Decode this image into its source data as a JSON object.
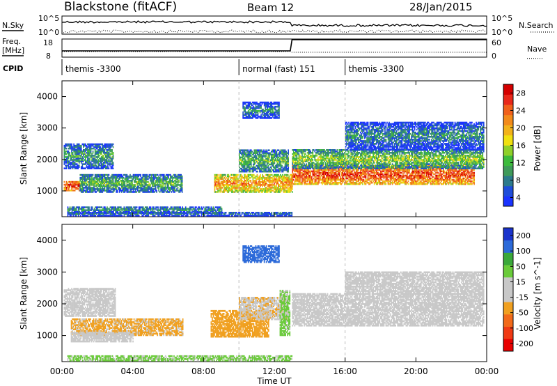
{
  "header": {
    "station": "Blackstone (fitACF)",
    "beam": "Beam 12",
    "date": "28/Jan/2015"
  },
  "top_panel": {
    "nsky_label": "N.Sky",
    "nsearch_label": "N.Search",
    "freq_label_1": "Freq.",
    "freq_label_2": "[MHz]",
    "nave_label": "Nave",
    "cpid_label": "CPID",
    "noise_left_ticks": [
      "10^5",
      "10^0"
    ],
    "noise_right_ticks": [
      "10^5",
      "10^0"
    ],
    "freq_ticks": [
      "18",
      "8"
    ],
    "nave_ticks": [
      "60",
      "0"
    ]
  },
  "cpid_segments": [
    {
      "label": "themis -3300",
      "start_hour": 0,
      "end_hour": 10
    },
    {
      "label": "normal (fast) 151",
      "start_hour": 10,
      "end_hour": 16
    },
    {
      "label": "themis -3300",
      "start_hour": 16,
      "end_hour": 24
    }
  ],
  "chart_data": [
    {
      "type": "heatmap",
      "title": "",
      "xlabel": "Time UT",
      "ylabel": "Slant Range [km]",
      "x_ticks": [
        "00:00",
        "04:00",
        "08:00",
        "12:00",
        "16:00",
        "20:00",
        "00:00"
      ],
      "xlim_hours": [
        0,
        24
      ],
      "y_ticks": [
        1000,
        2000,
        3000,
        4000
      ],
      "ylim": [
        180,
        4500
      ],
      "colorbar": {
        "label": "Power [dB]",
        "ticks": [
          "28",
          "24",
          "20",
          "16",
          "12",
          "8",
          "4"
        ],
        "range": [
          0,
          30
        ],
        "colors": [
          "#1a33ff",
          "#1f4dd9",
          "#2c7a8c",
          "#3f9a5a",
          "#3dbb3d",
          "#8fd02a",
          "#f0e010",
          "#f2b21a",
          "#f28a1a",
          "#f0601a",
          "#e8281a",
          "#d40000"
        ]
      },
      "regions": [
        {
          "t0": 0.1,
          "t1": 1.0,
          "r0": 1000,
          "r1": 1300,
          "v": 27
        },
        {
          "t0": 0.1,
          "t1": 2.9,
          "r0": 1700,
          "r1": 2500,
          "v": 10
        },
        {
          "t0": 1.0,
          "t1": 6.8,
          "r0": 950,
          "r1": 1500,
          "v": 12
        },
        {
          "t0": 0.3,
          "t1": 9.0,
          "r0": 280,
          "r1": 500,
          "v": 9
        },
        {
          "t0": 8.6,
          "t1": 13.0,
          "r0": 950,
          "r1": 1500,
          "v": 22
        },
        {
          "t0": 10.0,
          "t1": 12.8,
          "r0": 1600,
          "r1": 2300,
          "v": 12
        },
        {
          "t0": 10.2,
          "t1": 12.3,
          "r0": 3300,
          "r1": 3800,
          "v": 8
        },
        {
          "t0": 13.0,
          "t1": 23.3,
          "r0": 1200,
          "r1": 1800,
          "v": 26
        },
        {
          "t0": 13.0,
          "t1": 23.8,
          "r0": 1700,
          "r1": 2300,
          "v": 14
        },
        {
          "t0": 16.0,
          "t1": 23.8,
          "r0": 2300,
          "r1": 3200,
          "v": 8
        },
        {
          "t0": 0.3,
          "t1": 13.0,
          "r0": 200,
          "r1": 320,
          "v": 8
        }
      ]
    },
    {
      "type": "heatmap",
      "title": "",
      "xlabel": "Time UT",
      "ylabel": "Slant Range [km]",
      "x_ticks": [
        "00:00",
        "04:00",
        "08:00",
        "12:00",
        "16:00",
        "20:00",
        "00:00"
      ],
      "xlim_hours": [
        0,
        24
      ],
      "y_ticks": [
        1000,
        2000,
        3000,
        4000
      ],
      "ylim": [
        180,
        4500
      ],
      "colorbar": {
        "label": "Velocity [m s^-1]",
        "ticks": [
          "200",
          "100",
          "50",
          "15",
          "-15",
          "-50",
          "-100",
          "-200"
        ],
        "range": [
          -250,
          250
        ],
        "colors": [
          "#e80000",
          "#f03a14",
          "#f26a1a",
          "#f0a020",
          "#c8c8c8",
          "#c8c8c8",
          "#6acb3a",
          "#3aa83a",
          "#2c6ad9",
          "#1a33cc"
        ]
      },
      "regions": [
        {
          "t0": 0.1,
          "t1": 3.0,
          "r0": 1600,
          "r1": 2500,
          "v": 0
        },
        {
          "t0": 0.5,
          "t1": 6.8,
          "r0": 1000,
          "r1": 1500,
          "v": -60
        },
        {
          "t0": 0.5,
          "t1": 4.0,
          "r0": 800,
          "r1": 1100,
          "v": 0
        },
        {
          "t0": 8.4,
          "t1": 11.7,
          "r0": 950,
          "r1": 1800,
          "v": -80
        },
        {
          "t0": 10.0,
          "t1": 12.8,
          "r0": 1500,
          "r1": 2200,
          "v": -40
        },
        {
          "t0": 10.2,
          "t1": 12.3,
          "r0": 3300,
          "r1": 3800,
          "v": 180
        },
        {
          "t0": 12.3,
          "t1": 12.9,
          "r0": 1000,
          "r1": 2400,
          "v": 60
        },
        {
          "t0": 13.0,
          "t1": 23.8,
          "r0": 1300,
          "r1": 2300,
          "v": 0
        },
        {
          "t0": 16.0,
          "t1": 23.8,
          "r0": 2300,
          "r1": 3000,
          "v": 0
        },
        {
          "t0": 0.3,
          "t1": 13.0,
          "r0": 200,
          "r1": 340,
          "v": 60
        }
      ]
    }
  ]
}
